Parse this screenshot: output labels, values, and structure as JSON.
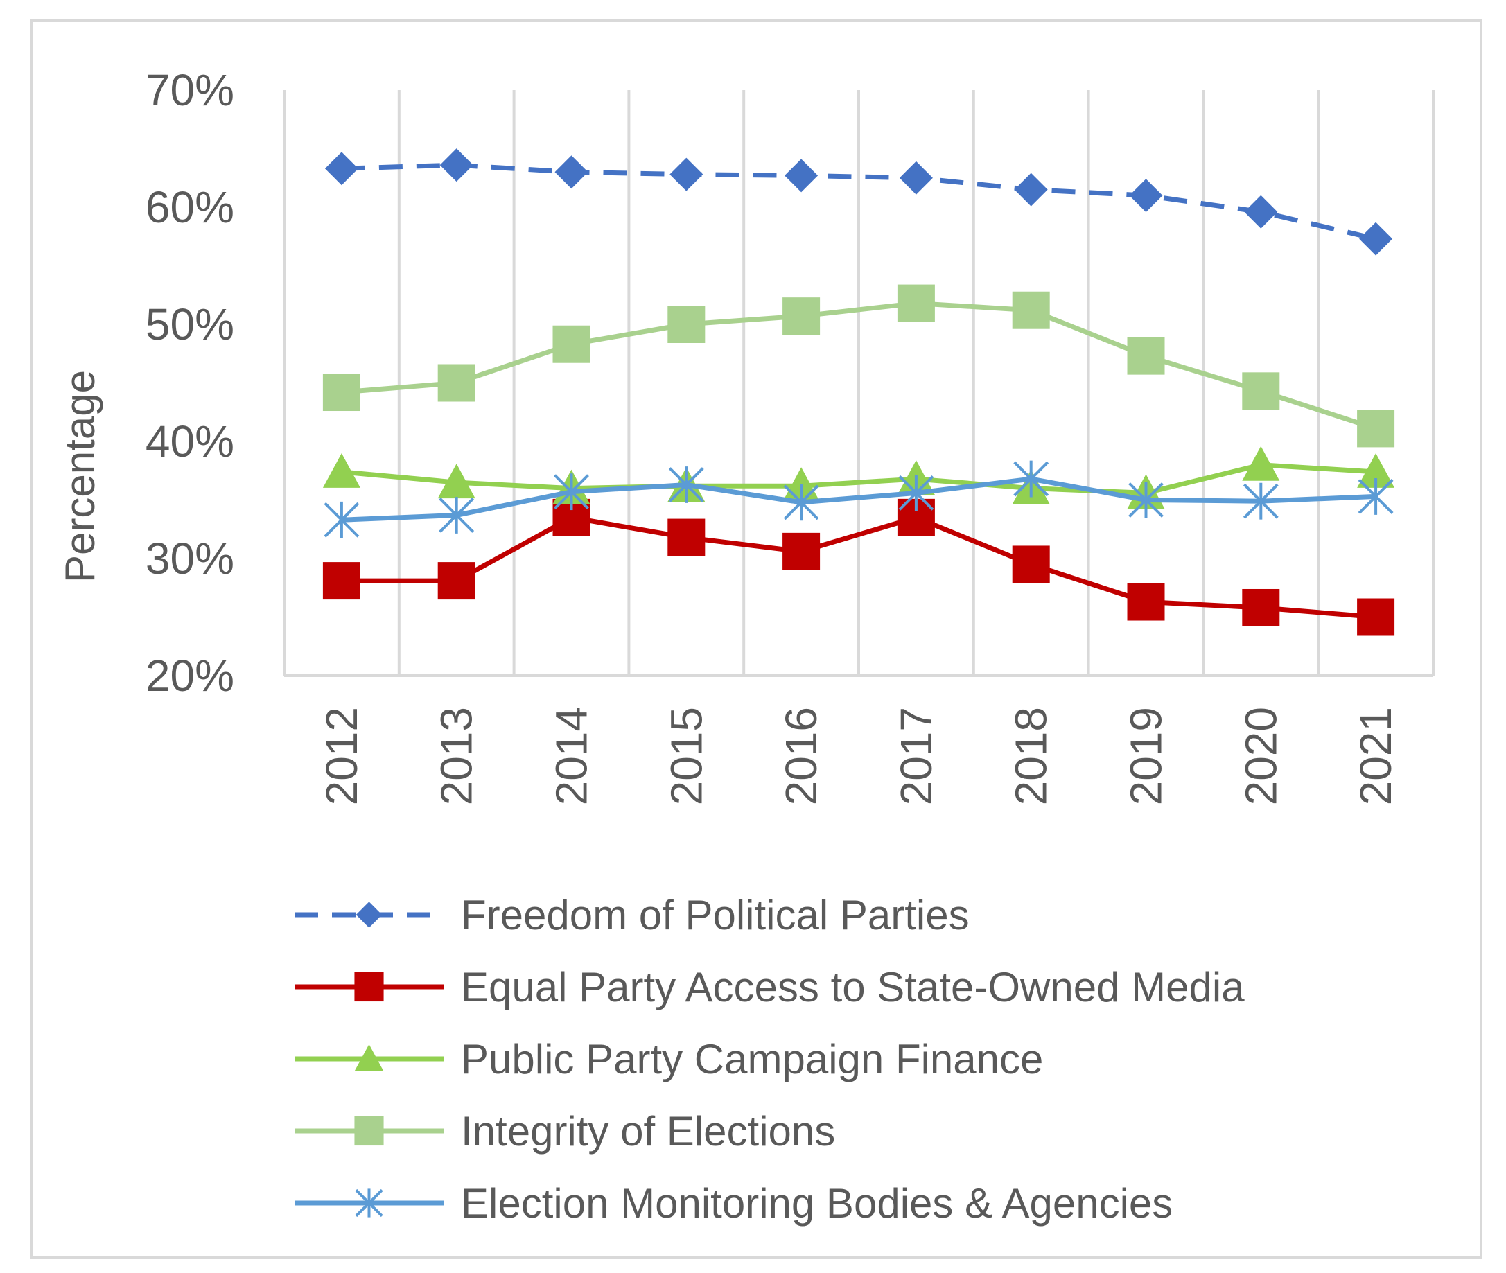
{
  "chart_data": {
    "type": "line",
    "title": "",
    "xlabel": "",
    "ylabel": "Percentage",
    "ylim": [
      20,
      70
    ],
    "yticks": [
      "20%",
      "30%",
      "40%",
      "50%",
      "60%",
      "70%"
    ],
    "ytick_values": [
      20,
      30,
      40,
      50,
      60,
      70
    ],
    "categories": [
      "2012",
      "2013",
      "2014",
      "2015",
      "2016",
      "2017",
      "2018",
      "2019",
      "2020",
      "2021"
    ],
    "grid": "vertical",
    "legend": "bottom",
    "series": [
      {
        "name": "Freedom of Political Parties",
        "color": "#4472c4",
        "dash": true,
        "marker": "diamond",
        "values": [
          63.3,
          63.6,
          63.0,
          62.8,
          62.7,
          62.5,
          61.5,
          61.0,
          59.6,
          57.3
        ]
      },
      {
        "name": "Equal Party Access to State-Owned Media",
        "color": "#c00000",
        "dash": false,
        "marker": "square",
        "values": [
          28.1,
          28.1,
          33.5,
          31.8,
          30.6,
          33.5,
          29.5,
          26.3,
          25.8,
          25.0
        ]
      },
      {
        "name": "Public Party Campaign Finance",
        "color": "#92d050",
        "dash": false,
        "marker": "triangle",
        "values": [
          37.4,
          36.5,
          36.0,
          36.2,
          36.2,
          36.8,
          36.0,
          35.6,
          38.0,
          37.4
        ]
      },
      {
        "name": "Integrity of Elections",
        "color": "#a9d18e",
        "dash": false,
        "marker": "square",
        "values": [
          44.2,
          45.0,
          48.3,
          50.0,
          50.7,
          51.8,
          51.2,
          47.3,
          44.3,
          41.1
        ]
      },
      {
        "name": "Election Monitoring Bodies & Agencies",
        "color": "#5b9bd5",
        "dash": false,
        "marker": "star",
        "values": [
          33.3,
          33.7,
          35.7,
          36.3,
          34.8,
          35.6,
          36.8,
          35.0,
          34.9,
          35.3
        ]
      }
    ]
  }
}
